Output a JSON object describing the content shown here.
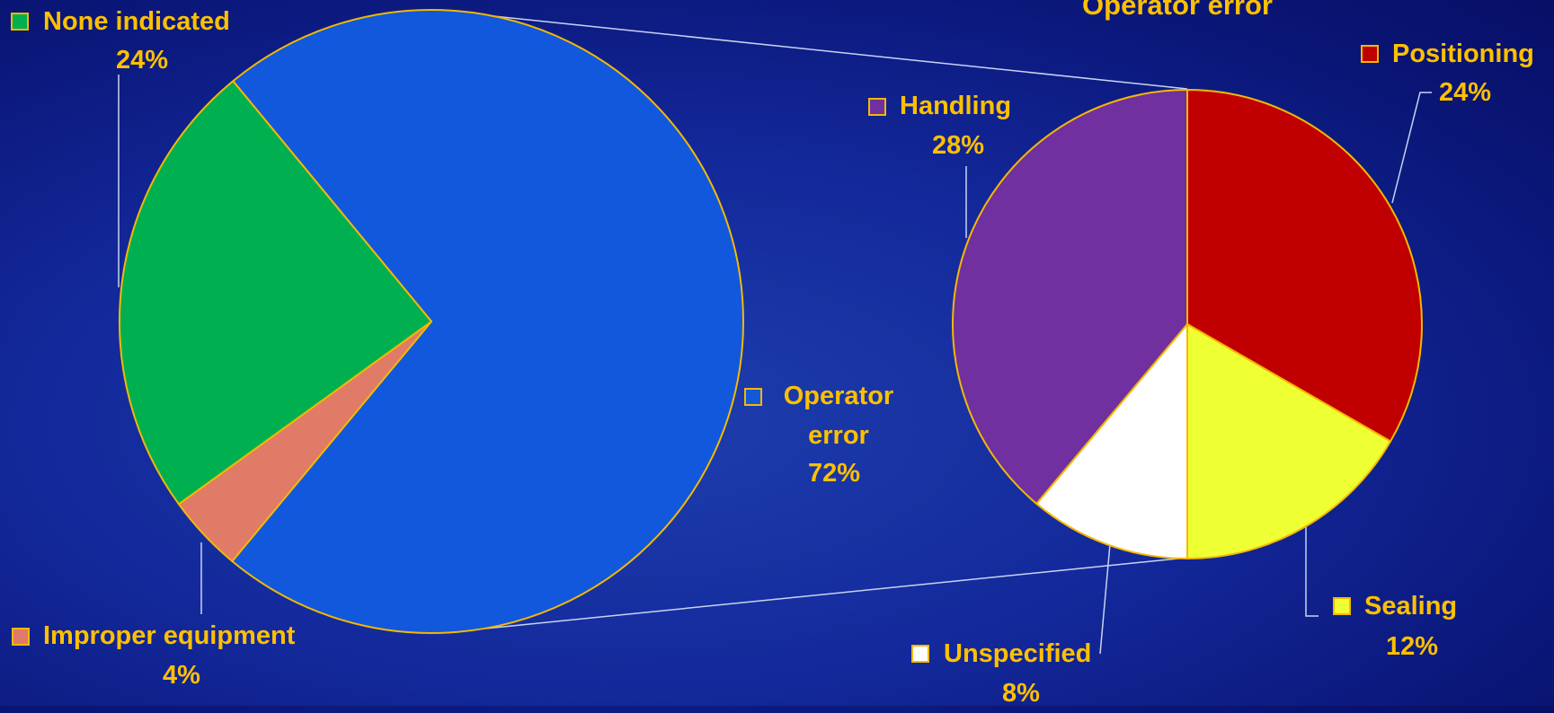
{
  "chart_data": [
    {
      "type": "pie",
      "categories": [
        "Operator error",
        "Improper equipment",
        "None indicated"
      ],
      "values": [
        72,
        4,
        24
      ],
      "value_labels": [
        "72%",
        "4%",
        "24%"
      ],
      "colors": [
        "#1158dc",
        "#e07b67",
        "#00b050"
      ]
    },
    {
      "type": "pie",
      "title": "Operator error",
      "categories": [
        "Positioning",
        "Sealing",
        "Unspecified",
        "Handling"
      ],
      "values": [
        24,
        12,
        8,
        28
      ],
      "value_labels": [
        "24%",
        "12%",
        "8%",
        "28%"
      ],
      "colors": [
        "#c00000",
        "#eeff33",
        "#ffffff",
        "#7030a0"
      ]
    }
  ]
}
